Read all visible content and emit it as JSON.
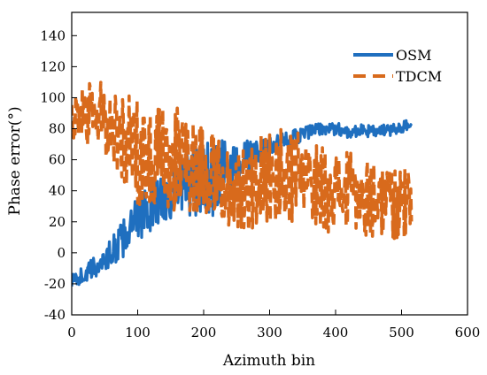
{
  "chart_data": {
    "type": "line",
    "xlabel": "Azimuth bin",
    "ylabel": "Phase error(°)",
    "xlim": [
      0,
      600
    ],
    "ylim": [
      -40,
      155
    ],
    "x_ticks": [
      "0",
      "100",
      "200",
      "300",
      "400",
      "500",
      "600"
    ],
    "y_ticks": [
      "-40",
      "-20",
      "0",
      "20",
      "40",
      "60",
      "80",
      "100",
      "120",
      "140"
    ],
    "grid": false,
    "legend_position": "top-right",
    "series": [
      {
        "name": "OSM",
        "color": "#1f6fbf",
        "style": "solid",
        "trend_x": [
          0,
          20,
          40,
          60,
          80,
          100,
          120,
          140,
          160,
          180,
          200,
          220,
          240,
          260,
          280,
          300,
          320,
          340,
          360,
          380,
          400,
          420,
          440,
          460,
          480,
          500,
          515
        ],
        "trend_y": [
          -18,
          -14,
          -8,
          0,
          10,
          22,
          30,
          36,
          40,
          44,
          46,
          48,
          54,
          60,
          65,
          68,
          72,
          75,
          78,
          80,
          80,
          78,
          79,
          78,
          79,
          81,
          84
        ],
        "spread": [
          4,
          6,
          8,
          10,
          12,
          14,
          16,
          18,
          20,
          22,
          24,
          26,
          18,
          12,
          8,
          6,
          5,
          5,
          5,
          4,
          4,
          4,
          4,
          4,
          4,
          4,
          3
        ]
      },
      {
        "name": "TDCM",
        "color": "#d86a1c",
        "style": "dashed",
        "trend_x": [
          0,
          20,
          40,
          60,
          80,
          100,
          120,
          140,
          160,
          180,
          200,
          220,
          240,
          260,
          280,
          300,
          320,
          340,
          360,
          380,
          400,
          420,
          440,
          460,
          480,
          500,
          515
        ],
        "trend_y": [
          85,
          88,
          90,
          82,
          72,
          66,
          62,
          58,
          60,
          58,
          55,
          48,
          42,
          40,
          45,
          48,
          50,
          48,
          45,
          42,
          40,
          38,
          36,
          35,
          34,
          33,
          30
        ],
        "spread": [
          15,
          20,
          22,
          25,
          30,
          35,
          35,
          35,
          35,
          32,
          30,
          25,
          25,
          28,
          30,
          30,
          30,
          30,
          28,
          28,
          28,
          28,
          25,
          25,
          25,
          25,
          20
        ]
      }
    ]
  }
}
